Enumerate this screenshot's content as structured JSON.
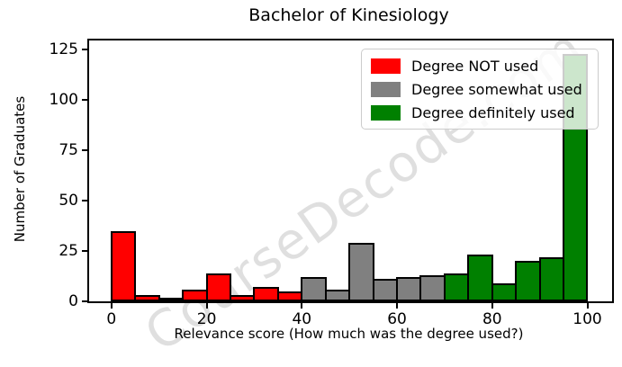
{
  "watermark": "CourseDecode.com",
  "chart_data": {
    "type": "bar",
    "subtype": "histogram",
    "title": "Bachelor of Kinesiology",
    "xlabel": "Relevance score (How much was the degree used?)",
    "ylabel": "Number of Graduates",
    "grid": false,
    "legend_position": "upper right",
    "bar_edge_color": "#000000",
    "bin_width": 5,
    "xlim": [
      -4.7,
      105.2
    ],
    "ylim": [
      0,
      129.5
    ],
    "xticks": [
      0,
      20,
      40,
      60,
      80,
      100
    ],
    "yticks": [
      0,
      25,
      50,
      75,
      100,
      125
    ],
    "series": [
      {
        "name": "Degree NOT used",
        "color": "#ff0000",
        "bin_start": 0,
        "counts": [
          35,
          3,
          2,
          6,
          14,
          3,
          7,
          5
        ]
      },
      {
        "name": "Degree somewhat used",
        "color": "#808080",
        "bin_start": 40,
        "counts": [
          12,
          6,
          29,
          11,
          12,
          13
        ]
      },
      {
        "name": "Degree definitely used",
        "color": "#008000",
        "bin_start": 70,
        "counts": [
          14,
          23,
          9,
          20,
          22,
          123
        ]
      }
    ]
  }
}
